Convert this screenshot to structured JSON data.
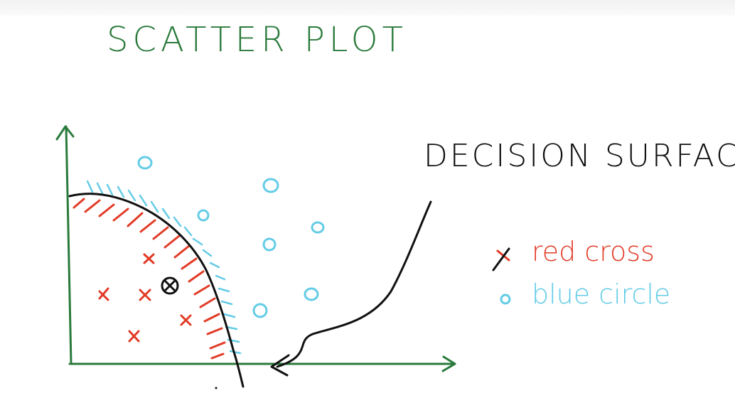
{
  "title": "SCATTER PLOT",
  "annotation": "DECISION SURFACE",
  "legend": {
    "red": {
      "label": "red cross",
      "symbol": "x"
    },
    "blue": {
      "label": "blue circle",
      "symbol": "o"
    }
  },
  "colors": {
    "axes": "#2a7a3b",
    "title": "#2a7a3b",
    "red": "#e23b26",
    "blue": "#64cce6",
    "ink": "#111111"
  }
}
